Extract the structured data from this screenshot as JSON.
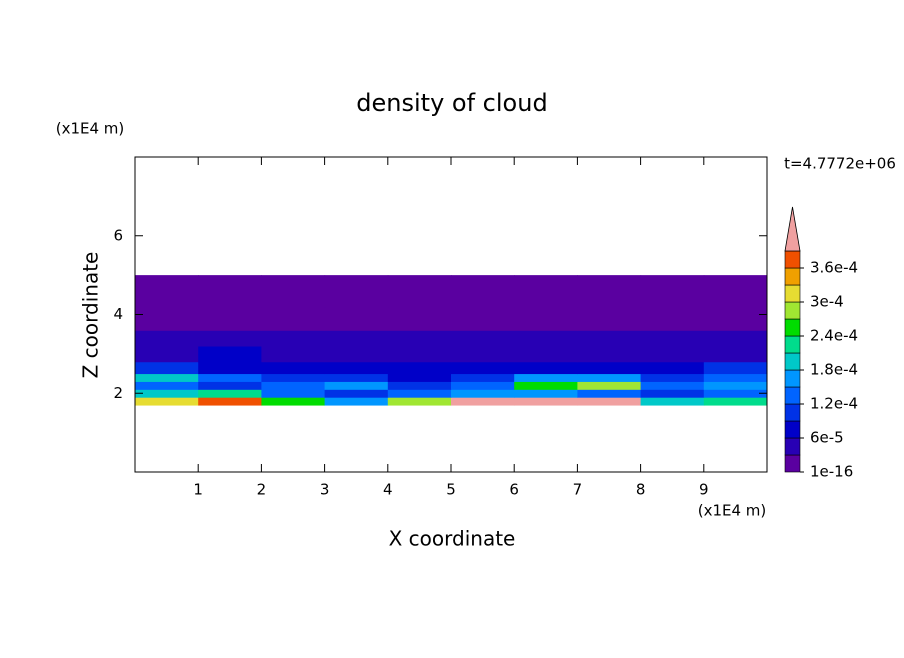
{
  "chart_data": {
    "type": "contour",
    "title": "density of cloud",
    "x_label": "X coordinate",
    "y_label": "Z coordinate",
    "x_unit": "(x1E4 m)",
    "y_unit": "(x1E4 m)",
    "time_label": "t=4.7772e+06",
    "xlim": [
      0,
      10
    ],
    "ylim": [
      0,
      8
    ],
    "xticks": [
      1,
      2,
      3,
      4,
      5,
      6,
      7,
      8,
      9
    ],
    "yticks": [
      2,
      4,
      6
    ],
    "x_edges": [
      0,
      1,
      2,
      3,
      4,
      5,
      6,
      7,
      8,
      9,
      10
    ],
    "z_edges": [
      1.7,
      1.9,
      2.1,
      2.3,
      2.5,
      2.8,
      3.2,
      3.6,
      4.2,
      5.0
    ],
    "values": [
      [
        0.0003,
        0.00036,
        0.00024,
        0.00015,
        0.00027,
        0.00042,
        0.00045,
        0.0004,
        0.00018,
        0.00021
      ],
      [
        0.00018,
        0.00021,
        0.00012,
        0.0001,
        0.00013,
        0.00015,
        0.00017,
        0.00014,
        0.0001,
        0.00012
      ],
      [
        0.00012,
        0.0001,
        0.00014,
        0.00016,
        0.00011,
        0.00012,
        0.00024,
        0.00027,
        0.00013,
        0.00015
      ],
      [
        0.00018,
        0.00012,
        9e-05,
        0.0001,
        8e-05,
        9e-05,
        0.00015,
        0.00016,
        0.00011,
        0.00014
      ],
      [
        9e-05,
        8e-05,
        7e-05,
        7e-05,
        6e-05,
        6e-05,
        7e-05,
        8e-05,
        8e-05,
        9e-05
      ],
      [
        5e-05,
        6e-05,
        5e-05,
        4e-05,
        4e-05,
        5e-05,
        5e-05,
        4e-05,
        5e-05,
        5e-05
      ],
      [
        3e-05,
        3e-05,
        4e-05,
        3e-05,
        3e-05,
        3e-05,
        3e-05,
        3e-05,
        3e-05,
        3e-05
      ],
      [
        2e-05,
        2e-05,
        2e-05,
        2e-05,
        2e-05,
        2e-05,
        2e-05,
        2e-05,
        2e-05,
        2e-05
      ],
      [
        1e-05,
        1e-05,
        1e-05,
        1e-05,
        1e-05,
        1e-05,
        1e-05,
        1e-05,
        1e-05,
        1e-05
      ]
    ],
    "levels": [
      1e-16,
      3e-05,
      6e-05,
      9e-05,
      0.00012,
      0.00015,
      0.00018,
      0.00021,
      0.00024,
      0.00027,
      0.0003,
      0.00033,
      0.00036,
      0.00039
    ],
    "level_colors": [
      "#5a00a0",
      "#2800b4",
      "#0000c8",
      "#0032e6",
      "#0064ff",
      "#0096ff",
      "#00c8c8",
      "#00dc8c",
      "#00dc00",
      "#a0e632",
      "#e6dc32",
      "#f0a000",
      "#f05000"
    ],
    "over_color": "#f0a0a0",
    "colorbar_ticks": [
      {
        "value": 1e-16,
        "label": "1e-16"
      },
      {
        "value": 6e-05,
        "label": "6e-5"
      },
      {
        "value": 0.00012,
        "label": "1.2e-4"
      },
      {
        "value": 0.00018,
        "label": "1.8e-4"
      },
      {
        "value": 0.00024,
        "label": "2.4e-4"
      },
      {
        "value": 0.0003,
        "label": "3e-4"
      },
      {
        "value": 0.00036,
        "label": "3.6e-4"
      }
    ]
  }
}
